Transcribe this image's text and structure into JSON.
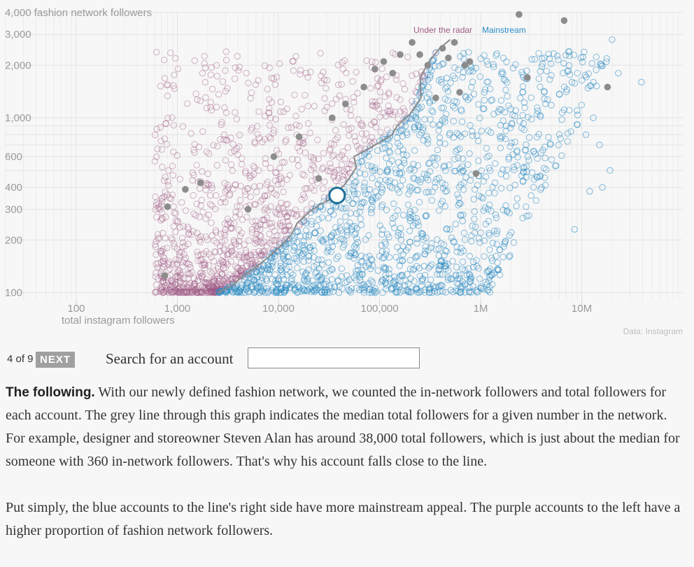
{
  "chart_data": {
    "type": "scatter",
    "xscale": "log",
    "yscale": "log",
    "xlim": [
      20,
      100000000
    ],
    "ylim": [
      90,
      4000
    ],
    "xticks": [
      {
        "value": 100,
        "label": "100"
      },
      {
        "value": 1000,
        "label": "1,000"
      },
      {
        "value": 10000,
        "label": "10,000"
      },
      {
        "value": 100000,
        "label": "100,000"
      },
      {
        "value": 1000000,
        "label": "1M"
      },
      {
        "value": 10000000,
        "label": "10M"
      }
    ],
    "yticks": [
      {
        "value": 100,
        "label": "100"
      },
      {
        "value": 200,
        "label": "200"
      },
      {
        "value": 300,
        "label": "300"
      },
      {
        "value": 400,
        "label": "400"
      },
      {
        "value": 600,
        "label": "600"
      },
      {
        "value": 1000,
        "label": "1,000"
      },
      {
        "value": 2000,
        "label": "2,000"
      },
      {
        "value": 3000,
        "label": "3,000"
      },
      {
        "value": 4000,
        "label": "4,000 fashion network followers"
      }
    ],
    "xlabel": "total instagram followers",
    "source": "Data: Instagram",
    "legend": [
      {
        "label": "Under the radar",
        "color": "#a05a86"
      },
      {
        "label": "Mainstream",
        "color": "#2b8cc4"
      }
    ],
    "median_line": [
      [
        2500,
        100
      ],
      [
        3500,
        110
      ],
      [
        4500,
        125
      ],
      [
        6000,
        140
      ],
      [
        8000,
        160
      ],
      [
        10500,
        185
      ],
      [
        13500,
        215
      ],
      [
        17000,
        250
      ],
      [
        21000,
        290
      ],
      [
        25000,
        320
      ],
      [
        30000,
        345
      ],
      [
        38000,
        360
      ],
      [
        46000,
        420
      ],
      [
        55000,
        520
      ],
      [
        62000,
        600
      ],
      [
        75000,
        650
      ],
      [
        95000,
        720
      ],
      [
        120000,
        800
      ],
      [
        160000,
        900
      ],
      [
        200000,
        1050
      ],
      [
        240000,
        1300
      ],
      [
        280000,
        1700
      ],
      [
        320000,
        2100
      ],
      [
        380000,
        2500
      ],
      [
        450000,
        2800
      ]
    ],
    "grey_points": [
      [
        800,
        310
      ],
      [
        750,
        125
      ],
      [
        1200,
        390
      ],
      [
        1700,
        425
      ],
      [
        5000,
        300
      ],
      [
        9000,
        600
      ],
      [
        16000,
        780
      ],
      [
        25000,
        450
      ],
      [
        34000,
        1000
      ],
      [
        46000,
        1200
      ],
      [
        70000,
        1500
      ],
      [
        90000,
        1900
      ],
      [
        110000,
        2100
      ],
      [
        135000,
        1800
      ],
      [
        160000,
        2300
      ],
      [
        210000,
        2700
      ],
      [
        250000,
        2300
      ],
      [
        300000,
        2000
      ],
      [
        360000,
        1300
      ],
      [
        420000,
        2500
      ],
      [
        480000,
        2200
      ],
      [
        550000,
        2700
      ],
      [
        620000,
        1400
      ],
      [
        700000,
        2000
      ],
      [
        780000,
        2100
      ],
      [
        900000,
        480
      ],
      [
        2400000,
        3900
      ],
      [
        2900000,
        1700
      ],
      [
        6700000,
        3600
      ],
      [
        18000000,
        1500
      ]
    ],
    "highlight": {
      "name": "Steven Alan",
      "x": 38000,
      "y": 360
    }
  },
  "controls": {
    "step": "4 of 9",
    "next_label": "NEXT",
    "search_label": "Search for an account",
    "search_value": "",
    "search_placeholder": ""
  },
  "copy": {
    "lead": "The following.",
    "p1": "With our newly defined fashion network, we counted the in-network followers and total followers for each account. The grey line through this graph indicates the median total followers for a given number in the network. For example, designer and storeowner Steven Alan has around 38,000 total followers, which is just about the median for someone with 360 in-network followers. That's why his account falls close to the line.",
    "p2": "Put simply, the blue accounts to the line's right side have more mainstream appeal. The purple accounts to the left have a higher proportion of fashion network followers."
  }
}
